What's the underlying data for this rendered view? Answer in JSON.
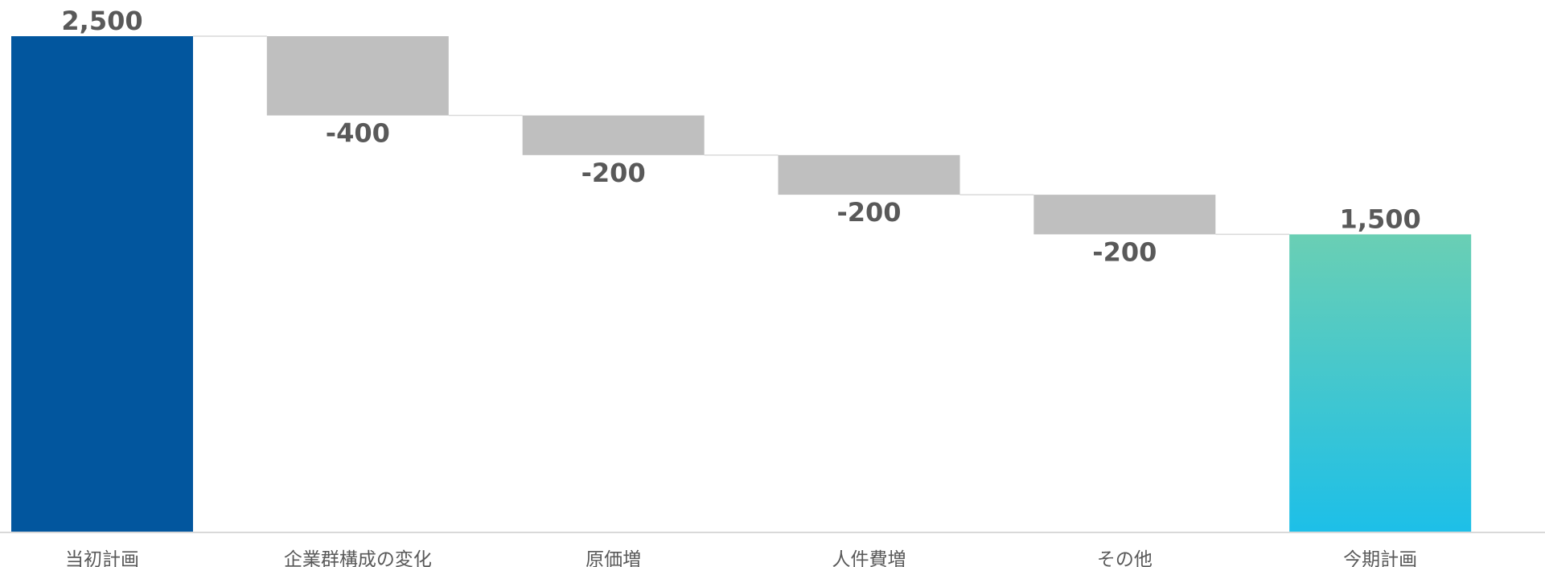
{
  "chart_data": {
    "type": "waterfall",
    "title": "",
    "xlabel": "",
    "ylabel": "",
    "ylim": [
      0,
      2500
    ],
    "grid": false,
    "legend": "none",
    "categories": [
      "当初計画",
      "企業群構成の変化",
      "原価増",
      "人件費増",
      "その他",
      "今期計画"
    ],
    "values": [
      2500,
      -400,
      -200,
      -200,
      -200,
      1500
    ],
    "kinds": [
      "total",
      "delta",
      "delta",
      "delta",
      "delta",
      "total"
    ],
    "value_labels": [
      "2,500",
      "-400",
      "-200",
      "-200",
      "-200",
      "1,500"
    ],
    "colors": {
      "start_total": "#02569E",
      "delta": "#BFBFBF",
      "end_total_top": "#6ACFB4",
      "end_total_bottom": "#1DBFE8",
      "connector": "#D9D9D9",
      "axis": "#D9D9D9",
      "label": "#595959"
    }
  }
}
